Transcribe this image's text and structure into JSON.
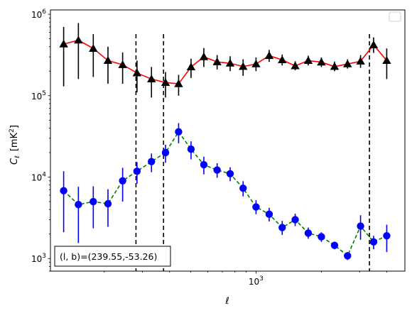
{
  "chart_data": {
    "type": "scatter",
    "xscale": "log",
    "yscale": "log",
    "xlim": [
      113,
      4850
    ],
    "ylim": [
      700,
      1130000
    ],
    "xlabel": "ℓ",
    "ylabel_main": "C",
    "ylabel_sub": "ℓ",
    "ylabel_unit": "[mK",
    "ylabel_unit_sup": "2",
    "ylabel_unit_end": "]",
    "x_tick_labels": [
      {
        "value": 1000,
        "base": "10",
        "exp": "3"
      }
    ],
    "y_tick_labels": [
      {
        "value": 1000,
        "base": "10",
        "exp": "3"
      },
      {
        "value": 10000,
        "base": "10",
        "exp": "4"
      },
      {
        "value": 100000,
        "base": "10",
        "exp": "5"
      },
      {
        "value": 1000000,
        "base": "10",
        "exp": "6"
      }
    ],
    "vlines": [
      280,
      375,
      3330
    ],
    "annotation": "(l, b)=(239.55,-53.26)",
    "legend": {
      "position": "top-right",
      "entries": []
    },
    "series": [
      {
        "line_color": "#ff0000",
        "line_style": "solid",
        "marker": "triangle",
        "marker_color": "#000000",
        "err_color": "#000000",
        "points": [
          {
            "x": 130,
            "y": 430000,
            "lo": 130000,
            "hi": 700000
          },
          {
            "x": 152,
            "y": 480000,
            "lo": 160000,
            "hi": 780000
          },
          {
            "x": 178,
            "y": 380000,
            "lo": 170000,
            "hi": 570000
          },
          {
            "x": 208,
            "y": 270000,
            "lo": 140000,
            "hi": 400000
          },
          {
            "x": 243,
            "y": 240000,
            "lo": 140000,
            "hi": 340000
          },
          {
            "x": 283,
            "y": 190000,
            "lo": 110000,
            "hi": 270000
          },
          {
            "x": 330,
            "y": 160000,
            "lo": 95000,
            "hi": 225000
          },
          {
            "x": 383,
            "y": 145000,
            "lo": 95000,
            "hi": 195000
          },
          {
            "x": 440,
            "y": 140000,
            "lo": 100000,
            "hi": 180000
          },
          {
            "x": 502,
            "y": 225000,
            "lo": 165000,
            "hi": 285000
          },
          {
            "x": 575,
            "y": 300000,
            "lo": 225000,
            "hi": 385000
          },
          {
            "x": 662,
            "y": 260000,
            "lo": 210000,
            "hi": 315000
          },
          {
            "x": 760,
            "y": 250000,
            "lo": 200000,
            "hi": 305000
          },
          {
            "x": 872,
            "y": 228000,
            "lo": 175000,
            "hi": 280000
          },
          {
            "x": 1000,
            "y": 245000,
            "lo": 200000,
            "hi": 295000
          },
          {
            "x": 1150,
            "y": 310000,
            "lo": 260000,
            "hi": 365000
          },
          {
            "x": 1320,
            "y": 275000,
            "lo": 235000,
            "hi": 320000
          },
          {
            "x": 1515,
            "y": 232000,
            "lo": 205000,
            "hi": 265000
          },
          {
            "x": 1740,
            "y": 270000,
            "lo": 235000,
            "hi": 310000
          },
          {
            "x": 2000,
            "y": 258000,
            "lo": 225000,
            "hi": 295000
          },
          {
            "x": 2300,
            "y": 228000,
            "lo": 200000,
            "hi": 262000
          },
          {
            "x": 2640,
            "y": 245000,
            "lo": 215000,
            "hi": 280000
          },
          {
            "x": 3030,
            "y": 265000,
            "lo": 220000,
            "hi": 315000
          },
          {
            "x": 3480,
            "y": 420000,
            "lo": 335000,
            "hi": 520000
          },
          {
            "x": 4000,
            "y": 270000,
            "lo": 160000,
            "hi": 380000
          }
        ]
      },
      {
        "line_color": "#008000",
        "line_style": "dashed",
        "marker": "circle",
        "marker_color": "#0000ff",
        "err_color": "#0000ff",
        "points": [
          {
            "x": 130,
            "y": 6800,
            "lo": 2100,
            "hi": 11800
          },
          {
            "x": 152,
            "y": 4600,
            "lo": 1550,
            "hi": 7600
          },
          {
            "x": 178,
            "y": 5000,
            "lo": 2350,
            "hi": 7700
          },
          {
            "x": 208,
            "y": 4700,
            "lo": 2450,
            "hi": 7100
          },
          {
            "x": 243,
            "y": 9000,
            "lo": 5000,
            "hi": 13000
          },
          {
            "x": 283,
            "y": 11800,
            "lo": 8300,
            "hi": 15300
          },
          {
            "x": 330,
            "y": 15500,
            "lo": 11500,
            "hi": 19500
          },
          {
            "x": 383,
            "y": 20000,
            "lo": 15000,
            "hi": 25000
          },
          {
            "x": 440,
            "y": 36000,
            "lo": 26000,
            "hi": 46000
          },
          {
            "x": 502,
            "y": 22000,
            "lo": 16500,
            "hi": 27500
          },
          {
            "x": 575,
            "y": 14200,
            "lo": 10800,
            "hi": 17800
          },
          {
            "x": 662,
            "y": 12200,
            "lo": 9800,
            "hi": 14800
          },
          {
            "x": 760,
            "y": 11000,
            "lo": 8900,
            "hi": 13200
          },
          {
            "x": 872,
            "y": 7300,
            "lo": 5800,
            "hi": 8900
          },
          {
            "x": 1000,
            "y": 4300,
            "lo": 3500,
            "hi": 5200
          },
          {
            "x": 1150,
            "y": 3500,
            "lo": 2850,
            "hi": 4200
          },
          {
            "x": 1320,
            "y": 2400,
            "lo": 1950,
            "hi": 2900
          },
          {
            "x": 1515,
            "y": 3000,
            "lo": 2500,
            "hi": 3550
          },
          {
            "x": 1740,
            "y": 2050,
            "lo": 1750,
            "hi": 2400
          },
          {
            "x": 2000,
            "y": 1850,
            "lo": 1600,
            "hi": 2100
          },
          {
            "x": 2300,
            "y": 1450,
            "lo": 1300,
            "hi": 1600
          },
          {
            "x": 2640,
            "y": 1080,
            "lo": 960,
            "hi": 1200
          },
          {
            "x": 3030,
            "y": 2500,
            "lo": 1700,
            "hi": 3400
          },
          {
            "x": 3480,
            "y": 1600,
            "lo": 1300,
            "hi": 1900
          },
          {
            "x": 4000,
            "y": 1900,
            "lo": 1200,
            "hi": 2600
          }
        ]
      }
    ]
  }
}
